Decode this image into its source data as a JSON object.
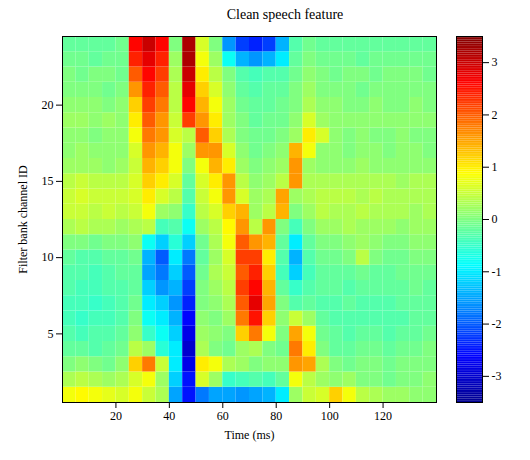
{
  "chart_data": {
    "type": "heatmap",
    "title": "Clean speech feature",
    "x_label": "Time (ms)",
    "y_label": "Filter bank channel ID",
    "x": [
      0,
      5,
      10,
      15,
      20,
      25,
      30,
      35,
      40,
      45,
      50,
      55,
      60,
      65,
      70,
      75,
      80,
      85,
      90,
      95,
      100,
      105,
      110,
      115,
      120,
      125,
      130,
      135
    ],
    "y": [
      1,
      2,
      3,
      4,
      5,
      6,
      7,
      8,
      9,
      10,
      11,
      12,
      13,
      14,
      15,
      16,
      17,
      18,
      19,
      20,
      21,
      22,
      23,
      24
    ],
    "z": [
      [
        0.8,
        0.9,
        0.8,
        0.7,
        0.6,
        0.8,
        0.5,
        0.3,
        -1.5,
        -2.5,
        -1.8,
        -1.5,
        -1.5,
        -1.6,
        -1.5,
        -1.4,
        -1.0,
        0.2,
        0.5,
        0.6,
        1.2,
        0.8,
        0.4,
        0.3,
        0.2,
        0.2,
        0.1,
        0.1
      ],
      [
        0.3,
        0.4,
        0.3,
        0.2,
        0.3,
        0.6,
        0.8,
        0.2,
        -1.2,
        -2.5,
        0.6,
        0.2,
        -0.5,
        -0.4,
        -0.3,
        -0.4,
        -0.2,
        0.8,
        0.4,
        0.2,
        0.1,
        0.2,
        0.0,
        0.0,
        -0.1,
        0.0,
        0.0,
        0.1
      ],
      [
        0.0,
        0.1,
        0.0,
        -0.1,
        0.1,
        1.2,
        1.8,
        0.5,
        -1.0,
        -2.8,
        1.0,
        0.8,
        0.3,
        0.2,
        0.0,
        0.1,
        0.1,
        1.6,
        1.5,
        0.3,
        0.0,
        -0.1,
        0.0,
        0.0,
        -0.1,
        0.0,
        0.0,
        0.0
      ],
      [
        -0.2,
        -0.2,
        -0.3,
        -0.2,
        -0.1,
        0.4,
        0.2,
        -0.6,
        -1.0,
        -3.0,
        0.3,
        0.0,
        -0.1,
        0.2,
        0.3,
        0.0,
        -0.1,
        1.8,
        1.0,
        0.0,
        -0.2,
        -0.2,
        -0.1,
        -0.1,
        -0.2,
        -0.1,
        -0.1,
        0.0
      ],
      [
        -0.3,
        -0.4,
        -0.3,
        -0.3,
        -0.2,
        0.1,
        -0.5,
        -0.8,
        -1.2,
        -2.8,
        0.2,
        0.1,
        0.0,
        1.2,
        1.8,
        0.8,
        0.0,
        1.5,
        0.8,
        -0.1,
        -0.2,
        -0.3,
        -0.2,
        -0.2,
        -0.3,
        -0.2,
        -0.2,
        -0.1
      ],
      [
        -0.4,
        -0.5,
        -0.4,
        -0.4,
        -0.3,
        0.0,
        -0.8,
        -1.0,
        -1.4,
        -2.6,
        0.1,
        0.0,
        0.2,
        1.8,
        2.5,
        1.2,
        0.1,
        0.5,
        0.2,
        -0.2,
        -0.3,
        -0.3,
        -0.3,
        -0.3,
        -0.3,
        -0.3,
        -0.2,
        -0.2
      ],
      [
        -0.4,
        -0.4,
        -0.5,
        -0.4,
        -0.3,
        -0.1,
        -1.0,
        -1.2,
        -1.6,
        -2.4,
        0.0,
        0.1,
        0.3,
        2.0,
        2.8,
        1.5,
        0.0,
        -0.3,
        -0.2,
        -0.3,
        -0.3,
        -0.2,
        -0.3,
        -0.3,
        -0.3,
        -0.2,
        -0.2,
        -0.2
      ],
      [
        -0.3,
        -0.4,
        -0.4,
        -0.3,
        -0.3,
        -0.2,
        -1.2,
        -1.6,
        -1.4,
        -2.2,
        0.0,
        0.2,
        0.4,
        2.2,
        2.6,
        1.4,
        -0.2,
        -0.5,
        -0.3,
        -0.2,
        -0.2,
        -0.3,
        -0.2,
        -0.2,
        -0.2,
        -0.2,
        -0.1,
        -0.2
      ],
      [
        -0.3,
        -0.3,
        -0.4,
        -0.3,
        -0.2,
        -0.2,
        -1.5,
        -1.8,
        -1.2,
        -2.0,
        -0.1,
        0.3,
        0.5,
        2.0,
        2.4,
        1.2,
        -0.4,
        -1.2,
        -0.4,
        -0.2,
        -0.2,
        -0.2,
        -0.1,
        -0.2,
        -0.2,
        -0.1,
        -0.1,
        -0.1
      ],
      [
        -0.2,
        -0.3,
        -0.3,
        -0.2,
        -0.2,
        -0.1,
        -1.4,
        -2.0,
        -1.0,
        -1.8,
        -0.2,
        0.2,
        0.6,
        2.2,
        2.2,
        1.0,
        -0.3,
        -1.4,
        -0.3,
        -0.1,
        -0.1,
        0.0,
        0.4,
        0.0,
        -0.1,
        -0.1,
        0.0,
        0.0
      ],
      [
        0.0,
        0.0,
        -0.1,
        0.0,
        0.0,
        0.1,
        -0.8,
        -1.2,
        -0.6,
        -1.2,
        -0.1,
        0.3,
        0.8,
        2.0,
        1.6,
        1.4,
        -0.2,
        -1.0,
        -0.2,
        0.0,
        0.0,
        0.1,
        0.2,
        0.1,
        0.0,
        0.0,
        0.1,
        0.1
      ],
      [
        0.3,
        0.4,
        0.3,
        0.3,
        0.2,
        0.3,
        0.4,
        -0.4,
        -0.3,
        -0.8,
        0.2,
        0.4,
        0.9,
        1.6,
        0.4,
        1.6,
        0.0,
        -0.4,
        0.0,
        0.2,
        0.2,
        0.3,
        0.2,
        0.2,
        0.2,
        0.1,
        0.2,
        0.2
      ],
      [
        0.5,
        0.5,
        0.4,
        0.5,
        0.4,
        0.5,
        0.8,
        0.2,
        0.1,
        -0.5,
        0.4,
        0.6,
        1.2,
        1.4,
        0.2,
        0.4,
        1.4,
        0.0,
        0.2,
        0.4,
        0.3,
        0.3,
        0.4,
        0.3,
        0.3,
        0.3,
        0.2,
        0.3
      ],
      [
        0.5,
        0.6,
        0.5,
        0.5,
        0.5,
        0.6,
        1.0,
        0.6,
        0.4,
        -0.3,
        0.5,
        0.8,
        1.6,
        0.6,
        0.2,
        0.3,
        1.5,
        0.2,
        0.3,
        0.4,
        0.4,
        0.4,
        0.3,
        0.4,
        0.3,
        0.3,
        0.3,
        0.3
      ],
      [
        0.4,
        0.5,
        0.4,
        0.4,
        0.4,
        0.6,
        1.2,
        1.0,
        0.6,
        -0.2,
        0.6,
        1.0,
        1.6,
        0.4,
        0.1,
        0.2,
        0.4,
        1.6,
        0.3,
        0.3,
        0.3,
        0.3,
        0.3,
        0.3,
        0.3,
        0.2,
        0.3,
        0.3
      ],
      [
        0.2,
        0.2,
        0.2,
        0.1,
        0.2,
        0.5,
        1.4,
        1.2,
        0.8,
        0.0,
        0.8,
        1.4,
        1.0,
        0.2,
        0.0,
        0.1,
        0.2,
        1.6,
        0.2,
        0.1,
        0.1,
        0.1,
        0.2,
        0.1,
        0.1,
        0.1,
        0.1,
        0.1
      ],
      [
        0.1,
        0.2,
        0.1,
        0.1,
        0.1,
        0.6,
        1.6,
        1.4,
        0.8,
        0.2,
        1.6,
        1.6,
        0.6,
        0.1,
        -0.1,
        0.0,
        0.1,
        1.4,
        0.8,
        0.1,
        0.1,
        0.0,
        0.1,
        0.1,
        0.0,
        0.1,
        0.1,
        0.0
      ],
      [
        0.1,
        0.1,
        0.0,
        0.1,
        0.1,
        0.8,
        1.8,
        1.6,
        0.6,
        0.4,
        2.0,
        1.2,
        0.3,
        0.0,
        -0.1,
        -0.1,
        0.0,
        0.2,
        1.0,
        0.6,
        0.1,
        0.0,
        0.1,
        0.0,
        0.0,
        0.1,
        0.0,
        0.0
      ],
      [
        0.2,
        0.2,
        0.1,
        0.2,
        0.1,
        1.0,
        2.0,
        1.6,
        0.5,
        2.2,
        1.6,
        1.0,
        0.2,
        0.0,
        -0.2,
        -0.1,
        -0.1,
        0.1,
        0.6,
        0.2,
        0.1,
        0.1,
        0.1,
        0.1,
        0.1,
        0.1,
        0.1,
        0.1
      ],
      [
        0.1,
        0.1,
        0.1,
        0.0,
        0.1,
        1.2,
        2.2,
        1.8,
        0.4,
        2.6,
        1.4,
        0.8,
        0.2,
        -0.1,
        -0.2,
        -0.2,
        -0.1,
        0.0,
        0.3,
        0.1,
        0.1,
        0.0,
        0.0,
        0.1,
        0.0,
        0.0,
        0.1,
        0.0
      ],
      [
        0.0,
        0.0,
        0.0,
        -0.1,
        0.0,
        1.6,
        2.4,
        2.0,
        0.4,
        2.8,
        1.2,
        0.6,
        0.1,
        -0.2,
        -0.3,
        -0.2,
        -0.2,
        0.0,
        0.2,
        0.0,
        0.0,
        0.0,
        -0.1,
        0.0,
        0.0,
        0.0,
        0.0,
        0.0
      ],
      [
        0.0,
        -0.1,
        0.0,
        0.0,
        -0.1,
        2.0,
        2.6,
        2.2,
        0.3,
        3.0,
        1.0,
        0.4,
        0.0,
        -0.3,
        -0.4,
        -0.3,
        -0.3,
        -0.1,
        0.1,
        0.0,
        -0.1,
        0.0,
        0.0,
        -0.1,
        0.0,
        0.0,
        0.0,
        -0.1
      ],
      [
        -0.1,
        -0.1,
        -0.2,
        -0.1,
        -0.1,
        2.4,
        2.8,
        2.4,
        0.2,
        3.2,
        0.8,
        0.2,
        -0.8,
        -1.4,
        -1.6,
        -1.4,
        -1.0,
        -0.2,
        0.0,
        -0.1,
        -0.1,
        -0.1,
        -0.2,
        -0.1,
        -0.1,
        -0.1,
        -0.1,
        -0.1
      ],
      [
        -0.2,
        -0.2,
        -0.2,
        -0.2,
        -0.1,
        2.6,
        3.0,
        2.6,
        0.0,
        3.2,
        0.6,
        0.0,
        -1.6,
        -2.2,
        -2.4,
        -2.2,
        -1.4,
        -0.3,
        -0.1,
        -0.2,
        -0.2,
        -0.2,
        -0.2,
        -0.2,
        -0.2,
        -0.2,
        -0.2,
        -0.2
      ]
    ],
    "xlim": [
      0,
      140
    ],
    "ylim": [
      0.5,
      24.5
    ],
    "xticks": [
      20,
      40,
      60,
      80,
      100,
      120
    ],
    "yticks": [
      5,
      10,
      15,
      20
    ],
    "colorbar": {
      "lim": [
        -3.5,
        3.5
      ],
      "ticks": [
        -3,
        -2,
        -1,
        0,
        1,
        2,
        3
      ]
    }
  }
}
